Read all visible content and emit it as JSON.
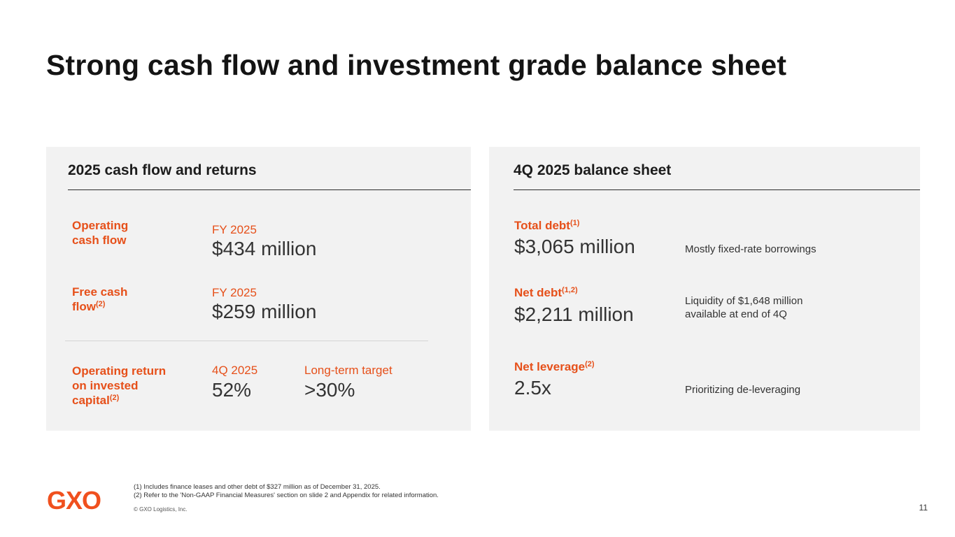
{
  "slide": {
    "title": "Strong cash flow and investment grade balance sheet",
    "page_number": "11"
  },
  "left_panel": {
    "title": "2025 cash flow and returns",
    "operating_cash_flow": {
      "label_line1": "Operating",
      "label_line2": "cash flow",
      "period": "FY 2025",
      "value": "$434 million"
    },
    "free_cash_flow": {
      "label_line1": "Free cash",
      "label_line2": "flow",
      "label_sup": "(2)",
      "period": "FY 2025",
      "value": "$259 million"
    },
    "roic": {
      "label_line1": "Operating return",
      "label_line2": "on invested",
      "label_line3": "capital",
      "label_sup": "(2)",
      "period": "4Q 2025",
      "value": "52%",
      "target_label": "Long-term target",
      "target_value": ">30%"
    }
  },
  "right_panel": {
    "title": "4Q 2025 balance sheet",
    "total_debt": {
      "label": "Total debt",
      "label_sup": "(1)",
      "value": "$3,065 million",
      "note": "Mostly fixed-rate borrowings"
    },
    "net_debt": {
      "label": "Net debt",
      "label_sup": "(1,2)",
      "value": "$2,211 million",
      "note_line1": "Liquidity of $1,648 million",
      "note_line2": "available at end of 4Q"
    },
    "net_leverage": {
      "label": "Net leverage",
      "label_sup": "(2)",
      "value": "2.5x",
      "note": "Prioritizing de-leveraging"
    }
  },
  "footer": {
    "logo_text": "GXO",
    "footnote1": "(1) Includes finance leases and other debt of $327 million as of December 31, 2025.",
    "footnote2": "(2) Refer to the 'Non-GAAP Financial Measures' section on slide 2 and Appendix for related information.",
    "copyright": "© GXO Logistics, Inc."
  },
  "colors": {
    "accent": "#e6501a",
    "panel_bg": "#f2f2f2",
    "logo": "#f0501e"
  }
}
